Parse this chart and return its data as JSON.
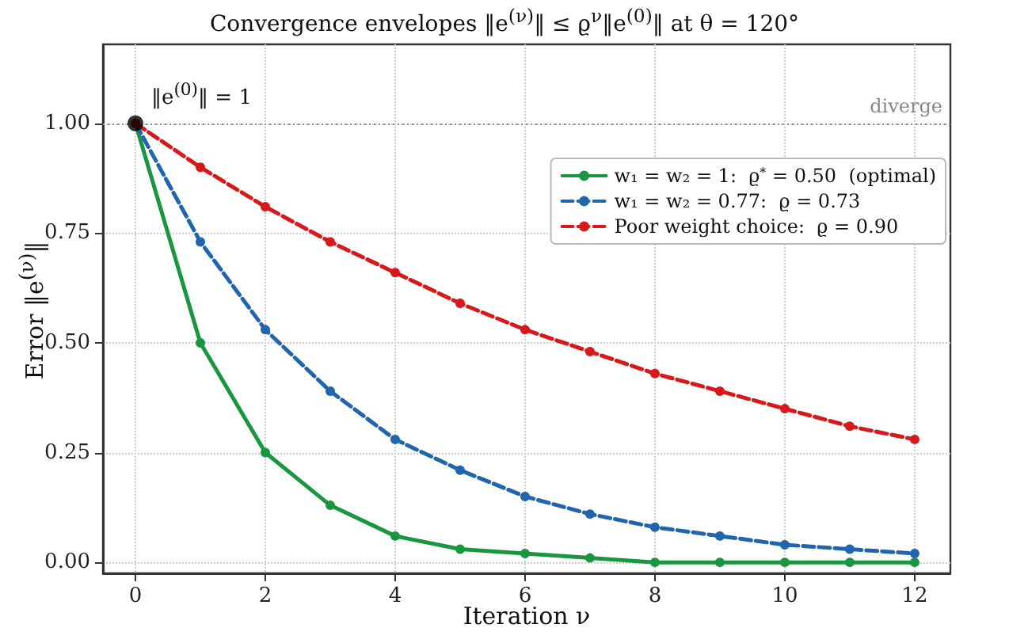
{
  "chart_data": {
    "type": "line",
    "title": "Convergence envelopes  ‖e$^{(ν)}$‖ ≤ ϱ$^{ν}$‖e$^{(0)}$‖   at  θ = 120°",
    "xlabel": "Iteration ν",
    "ylabel": "Error ‖e$^{(ν)}$‖",
    "x": [
      0,
      1,
      2,
      3,
      4,
      5,
      6,
      7,
      8,
      9,
      10,
      11,
      12
    ],
    "series": [
      {
        "name": "w₁ = w₂ = 1:  ϱ$^{*}$ = 0.50  (optimal)",
        "color": "#1a9641",
        "line_style": "solid",
        "values": [
          1,
          0.5,
          0.25,
          0.13,
          0.06,
          0.03,
          0.02,
          0.01,
          0,
          0,
          0,
          0,
          0
        ]
      },
      {
        "name": "w₁ = w₂ = 0.77:  ϱ = 0.73",
        "color": "#2166ac",
        "line_style": "dashed",
        "values": [
          1,
          0.73,
          0.53,
          0.39,
          0.28,
          0.21,
          0.15,
          0.11,
          0.08,
          0.06,
          0.04,
          0.03,
          0.02
        ]
      },
      {
        "name": "Poor weight choice:  ϱ = 0.90",
        "color": "#d7191c",
        "line_style": "dashed",
        "values": [
          1,
          0.9,
          0.81,
          0.73,
          0.66,
          0.59,
          0.53,
          0.48,
          0.43,
          0.39,
          0.35,
          0.31,
          0.28
        ]
      },
      {
        "type": "scatter",
        "color": "#000000",
        "x": [
          0
        ],
        "values": [
          1
        ]
      }
    ],
    "annotations": [
      {
        "text": "‖e$^{(0)}$‖ = 1",
        "x": 0,
        "y": 1
      }
    ],
    "ref_lines": [
      {
        "axis": "y",
        "value": 1,
        "label": "diverge",
        "color": "#888888",
        "line_style": "dotted"
      }
    ],
    "xlim": [
      -0.5,
      12.55
    ],
    "xticks": [
      0,
      2,
      4,
      6,
      8,
      10,
      12
    ],
    "ylim": [
      -0.025,
      1.18
    ],
    "yticks": [
      {
        "value": 0,
        "label": "0.00"
      },
      {
        "value": 0.25,
        "label": "0.25"
      },
      {
        "value": 0.5,
        "label": "0.50"
      },
      {
        "value": 0.75,
        "label": "0.75"
      },
      {
        "value": 1,
        "label": "1.00"
      }
    ],
    "grid": true,
    "legend": "top right",
    "marker": "circle"
  }
}
